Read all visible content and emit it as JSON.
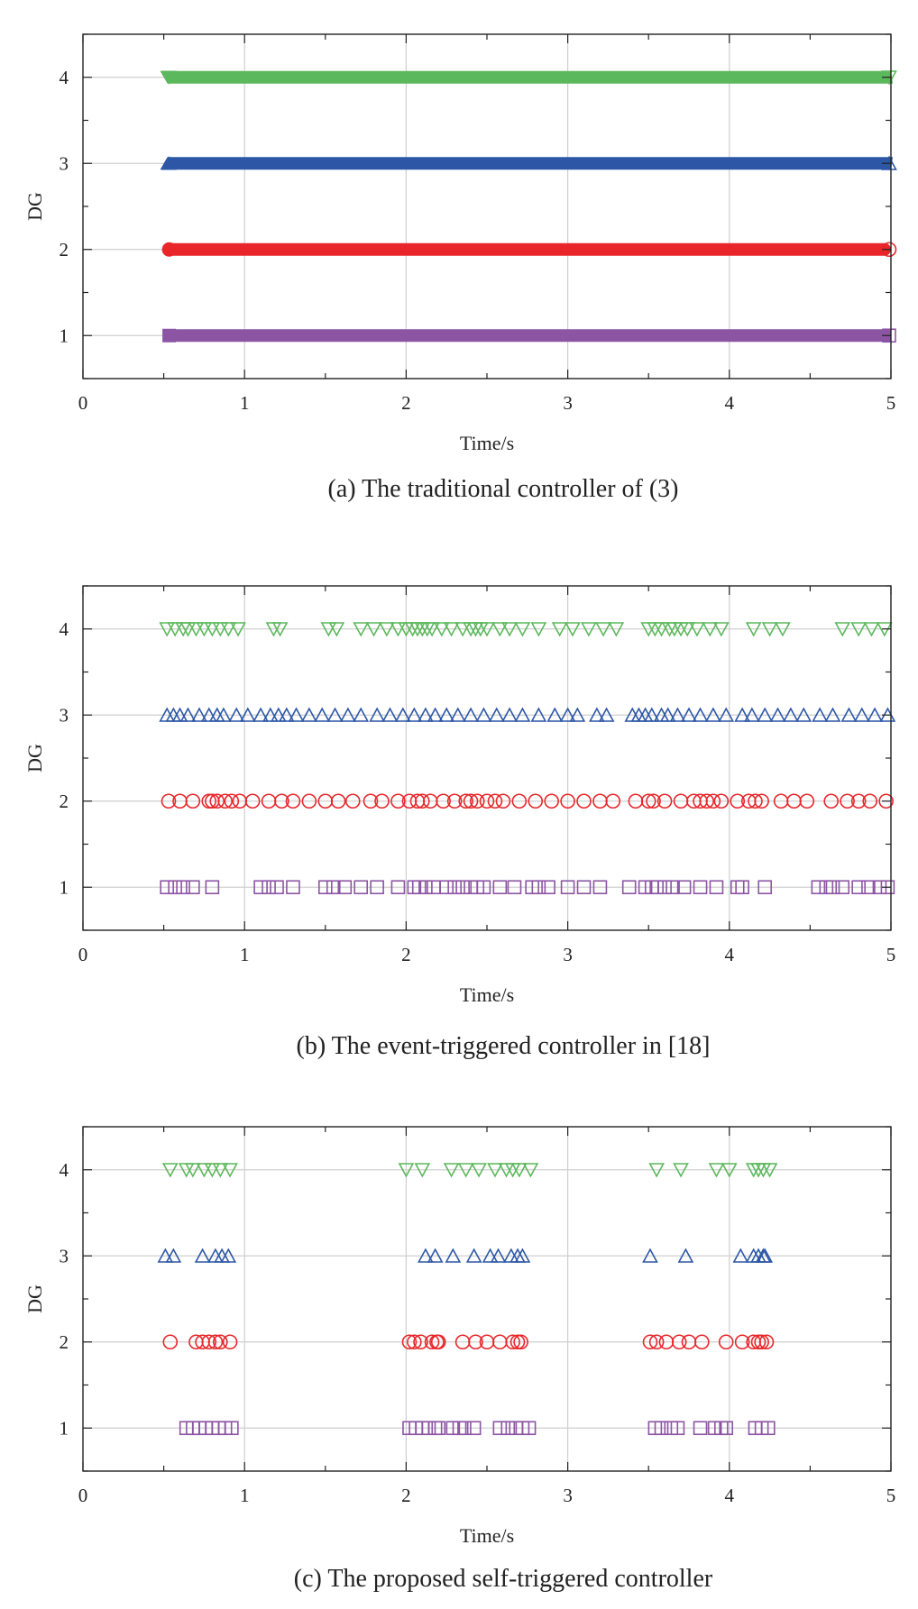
{
  "chart_data": [
    {
      "type": "scatter",
      "caption": "(a) The traditional controller of (3)",
      "xlabel": "Time/s",
      "ylabel": "DG",
      "xlim": [
        0,
        5
      ],
      "ylim": [
        0.5,
        4.5
      ],
      "xticks": [
        "0",
        "1",
        "2",
        "3",
        "4",
        "5"
      ],
      "yticks": [
        "1",
        "2",
        "3",
        "4"
      ],
      "grid": true,
      "dense": true,
      "series": [
        {
          "dg": 1,
          "marker": "square",
          "color": "#8c55a4",
          "x_range": [
            0.5,
            5.0
          ]
        },
        {
          "dg": 2,
          "marker": "circle",
          "color": "#e8262a",
          "x_range": [
            0.5,
            5.0
          ]
        },
        {
          "dg": 3,
          "marker": "triangle-up",
          "color": "#2d57a6",
          "x_range": [
            0.5,
            5.0
          ]
        },
        {
          "dg": 4,
          "marker": "triangle-down",
          "color": "#5cb85c",
          "x_range": [
            0.5,
            5.0
          ]
        }
      ]
    },
    {
      "type": "scatter",
      "caption": "(b) The event-triggered controller in [18]",
      "xlabel": "Time/s",
      "ylabel": "DG",
      "xlim": [
        0,
        5
      ],
      "ylim": [
        0.5,
        4.5
      ],
      "xticks": [
        "0",
        "1",
        "2",
        "3",
        "4",
        "5"
      ],
      "yticks": [
        "1",
        "2",
        "3",
        "4"
      ],
      "grid": true,
      "series": [
        {
          "dg": 1,
          "marker": "square",
          "color": "#8c55a4",
          "x": [
            0.52,
            0.57,
            0.62,
            0.68,
            0.8,
            1.1,
            1.15,
            1.2,
            1.3,
            1.5,
            1.55,
            1.62,
            1.72,
            1.82,
            1.95,
            2.05,
            2.08,
            2.12,
            2.17,
            2.25,
            2.3,
            2.35,
            2.4,
            2.44,
            2.48,
            2.58,
            2.67,
            2.78,
            2.82,
            2.88,
            3.0,
            3.1,
            3.2,
            3.38,
            3.48,
            3.52,
            3.55,
            3.6,
            3.65,
            3.72,
            3.82,
            3.92,
            4.05,
            4.08,
            4.22,
            4.55,
            4.6,
            4.64,
            4.7,
            4.8,
            4.86,
            4.93,
            4.98
          ]
        },
        {
          "dg": 2,
          "marker": "circle",
          "color": "#e8262a",
          "x": [
            0.53,
            0.6,
            0.68,
            0.78,
            0.8,
            0.83,
            0.88,
            0.92,
            0.97,
            1.05,
            1.15,
            1.23,
            1.3,
            1.4,
            1.5,
            1.58,
            1.67,
            1.78,
            1.85,
            1.95,
            2.02,
            2.07,
            2.1,
            2.15,
            2.23,
            2.3,
            2.37,
            2.4,
            2.44,
            2.5,
            2.55,
            2.6,
            2.7,
            2.8,
            2.9,
            3.0,
            3.1,
            3.2,
            3.28,
            3.42,
            3.5,
            3.53,
            3.6,
            3.7,
            3.78,
            3.82,
            3.86,
            3.9,
            3.95,
            4.05,
            4.12,
            4.16,
            4.2,
            4.32,
            4.4,
            4.48,
            4.63,
            4.73,
            4.8,
            4.87,
            4.97
          ]
        },
        {
          "dg": 3,
          "marker": "triangle-up",
          "color": "#2d57a6",
          "x": [
            0.52,
            0.56,
            0.6,
            0.65,
            0.72,
            0.78,
            0.83,
            0.87,
            0.95,
            1.02,
            1.1,
            1.16,
            1.21,
            1.26,
            1.32,
            1.4,
            1.48,
            1.56,
            1.64,
            1.72,
            1.82,
            1.9,
            1.98,
            2.05,
            2.12,
            2.18,
            2.25,
            2.32,
            2.4,
            2.48,
            2.56,
            2.64,
            2.72,
            2.82,
            2.92,
            3.0,
            3.06,
            3.18,
            3.24,
            3.4,
            3.44,
            3.48,
            3.52,
            3.58,
            3.62,
            3.68,
            3.75,
            3.82,
            3.9,
            3.98,
            4.08,
            4.14,
            4.22,
            4.3,
            4.38,
            4.46,
            4.56,
            4.64,
            4.74,
            4.82,
            4.9,
            4.98
          ]
        },
        {
          "dg": 4,
          "marker": "triangle-down",
          "color": "#5cb85c",
          "x": [
            0.52,
            0.57,
            0.62,
            0.65,
            0.7,
            0.75,
            0.8,
            0.85,
            0.9,
            0.96,
            1.18,
            1.22,
            1.52,
            1.57,
            1.72,
            1.8,
            1.88,
            1.95,
            2.0,
            2.04,
            2.07,
            2.1,
            2.13,
            2.16,
            2.22,
            2.28,
            2.35,
            2.4,
            2.43,
            2.46,
            2.5,
            2.58,
            2.64,
            2.72,
            2.82,
            2.95,
            3.03,
            3.13,
            3.22,
            3.3,
            3.5,
            3.54,
            3.58,
            3.63,
            3.66,
            3.7,
            3.74,
            3.8,
            3.88,
            3.95,
            4.15,
            4.25,
            4.33,
            4.7,
            4.8,
            4.88,
            4.96
          ]
        }
      ]
    },
    {
      "type": "scatter",
      "caption": "(c) The proposed self-triggered controller",
      "xlabel": "Time/s",
      "ylabel": "DG",
      "xlim": [
        0,
        5
      ],
      "ylim": [
        0.5,
        4.5
      ],
      "xticks": [
        "0",
        "1",
        "2",
        "3",
        "4",
        "5"
      ],
      "yticks": [
        "1",
        "2",
        "3",
        "4"
      ],
      "grid": true,
      "series": [
        {
          "dg": 1,
          "marker": "square",
          "color": "#8c55a4",
          "x": [
            0.64,
            0.68,
            0.72,
            0.76,
            0.8,
            0.84,
            0.88,
            0.92,
            2.02,
            2.06,
            2.1,
            2.14,
            2.18,
            2.2,
            2.29,
            2.33,
            2.36,
            2.42,
            2.58,
            2.63,
            2.68,
            2.72,
            2.76,
            3.54,
            3.58,
            3.64,
            3.68,
            3.82,
            3.91,
            3.95,
            3.98,
            4.16,
            4.2,
            4.24
          ]
        },
        {
          "dg": 2,
          "marker": "circle",
          "color": "#e8262a",
          "x": [
            0.54,
            0.7,
            0.74,
            0.78,
            0.82,
            0.85,
            0.91,
            2.02,
            2.05,
            2.09,
            2.16,
            2.19,
            2.2,
            2.35,
            2.43,
            2.5,
            2.58,
            2.66,
            2.69,
            2.71,
            3.51,
            3.55,
            3.61,
            3.69,
            3.75,
            3.83,
            3.98,
            4.08,
            4.15,
            4.18,
            4.2,
            4.23
          ]
        },
        {
          "dg": 3,
          "marker": "triangle-up",
          "color": "#2d57a6",
          "x": [
            0.51,
            0.56,
            0.74,
            0.82,
            0.86,
            0.9,
            2.12,
            2.18,
            2.29,
            2.42,
            2.52,
            2.57,
            2.65,
            2.69,
            2.72,
            3.51,
            3.73,
            4.07,
            4.15,
            4.18,
            4.21,
            4.22
          ]
        },
        {
          "dg": 4,
          "marker": "triangle-down",
          "color": "#5cb85c",
          "x": [
            0.54,
            0.64,
            0.68,
            0.75,
            0.8,
            0.85,
            0.91,
            2.0,
            2.1,
            2.28,
            2.37,
            2.45,
            2.55,
            2.62,
            2.66,
            2.7,
            2.77,
            3.55,
            3.7,
            3.92,
            4.0,
            4.15,
            4.18,
            4.21,
            4.25
          ]
        }
      ]
    }
  ]
}
